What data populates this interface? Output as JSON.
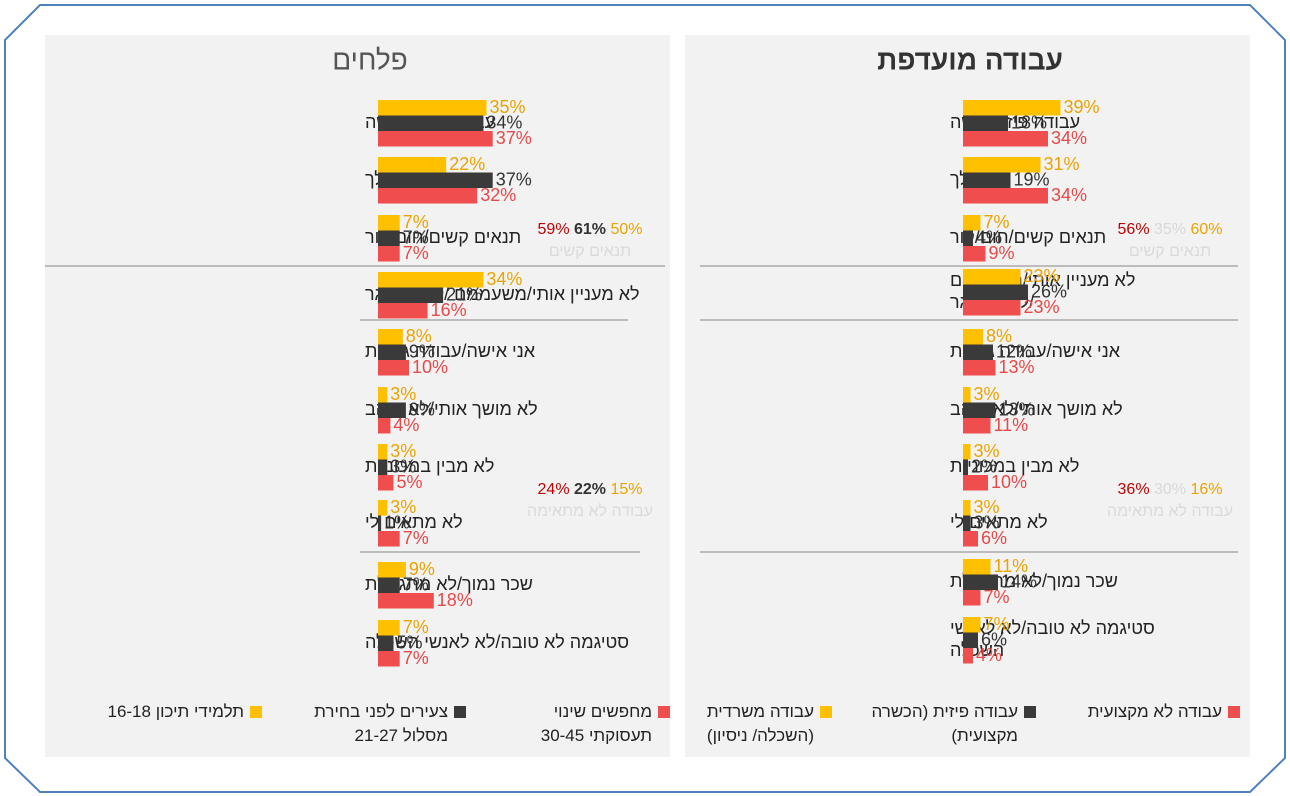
{
  "chart_data": [
    {
      "type": "bar",
      "orientation": "horizontal",
      "title": "פלחים",
      "categories": [
        "עבודה פיזית קשה",
        "מלכלך",
        "תנאים קשים/חום/קור",
        "לא מעניין אותי/משעממם /לא מאתגר",
        "אני אישה/עבודה גברית",
        "לא מושך אותי/לא אוהב",
        "לא מבין במכוניות",
        "לא מתאים לי",
        "שכר נמוך/לא מתגמלת",
        "סטיגמה לא טובה/לא לאנשי השכלה"
      ],
      "series": [
        {
          "name": "תלמידי תיכון 16-18",
          "color": "#FFC000",
          "label_color": "#EBA300",
          "values": [
            35,
            22,
            7,
            34,
            8,
            3,
            3,
            3,
            9,
            7
          ],
          "value_labels": [
            "35%",
            "22%",
            "7%",
            "34%",
            "8%",
            "3%",
            "3%",
            "3%",
            "9%",
            "7%"
          ]
        },
        {
          "name": "צעירים לפני בחירת מסלול 21-27",
          "color": "#3A3A3A",
          "label_color": "#333333",
          "values": [
            34,
            37,
            7,
            21,
            9,
            9,
            3,
            1,
            7,
            5
          ],
          "value_labels": [
            "34%",
            "37%",
            "7%",
            "21%",
            "9%",
            "9%",
            "3%",
            "1%",
            "7%",
            "5%"
          ]
        },
        {
          "name": "מחפשים שינוי תעסוקתי 30-45",
          "color": "#F04E4E",
          "label_color": "#E84848",
          "values": [
            37,
            32,
            7,
            16,
            10,
            4,
            5,
            7,
            18,
            7
          ],
          "value_labels": [
            "37%",
            "32%",
            "7%",
            "16%",
            "10%",
            "4%",
            "5%",
            "7%",
            "18%",
            "7%"
          ]
        }
      ],
      "annotations": [
        {
          "label": "תנאים קשים",
          "items": [
            {
              "value": 59,
              "label": "59%",
              "color": "#C00000"
            },
            {
              "value": 61,
              "label": "61%",
              "color": "#333333"
            },
            {
              "value": 50,
              "label": "50%",
              "color": "#EBA300"
            }
          ]
        },
        {
          "label": "עבודה לא מתאימה",
          "items": [
            {
              "value": 24,
              "label": "24%",
              "color": "#C00000"
            },
            {
              "value": 22,
              "label": "22%",
              "color": "#333333"
            },
            {
              "value": 15,
              "label": "15%",
              "color": "#EBA300"
            }
          ]
        }
      ]
    },
    {
      "type": "bar",
      "orientation": "horizontal",
      "title": "עבודה מועדפת",
      "categories": [
        "עבודה פיזית קשה",
        "מלכלך",
        "תנאים קשים/חום/קור",
        "לא מעניין אותי/משעממם /לא מאתגר",
        "אני אישה/עבודה גברית",
        "לא מושך אותי/לא אוהב",
        "לא מבין במכוניות",
        "לא מתאים לי",
        "שכר נמוך/לא מתגמלת",
        "סטיגמה לא טובה/לא לאנשי השכלה"
      ],
      "series": [
        {
          "name": "עבודה משרדית (השכלה/ ניסיון)",
          "color": "#FFC000",
          "label_color": "#EBA300",
          "values": [
            39,
            31,
            7,
            23,
            8,
            3,
            3,
            3,
            11,
            7
          ],
          "value_labels": [
            "39%",
            "31%",
            "7%",
            "23%",
            "8%",
            "3%",
            "3%",
            "3%",
            "11%",
            "7%"
          ]
        },
        {
          "name": "עבודה פיזית (הכשרה מקצועית)",
          "color": "#3A3A3A",
          "label_color": "#333333",
          "values": [
            18,
            19,
            4,
            26,
            12,
            13,
            2,
            3,
            14,
            6
          ],
          "value_labels": [
            "18%",
            "19%",
            "4%",
            "26%",
            "12%",
            "13%",
            "2%",
            "3%",
            "14%",
            "6%"
          ]
        },
        {
          "name": "עבודה לא מקצועית",
          "color": "#F04E4E",
          "label_color": "#E84848",
          "values": [
            34,
            34,
            9,
            23,
            13,
            11,
            10,
            6,
            7,
            4
          ],
          "value_labels": [
            "34%",
            "34%",
            "9%",
            "23%",
            "13%",
            "11%",
            "10%",
            "6%",
            "7%",
            "4%"
          ]
        }
      ],
      "annotations": [
        {
          "label": "תנאים קשים",
          "items": [
            {
              "value": 56,
              "label": "56%",
              "color": "#C00000"
            },
            {
              "value": 35,
              "label": "35%",
              "color": "#D8D8D8"
            },
            {
              "value": 60,
              "label": "60%",
              "color": "#EBA300"
            }
          ]
        },
        {
          "label": "עבודה לא מתאימה",
          "items": [
            {
              "value": 36,
              "label": "36%",
              "color": "#C00000"
            },
            {
              "value": 30,
              "label": "30%",
              "color": "#D8D8D8"
            },
            {
              "value": 16,
              "label": "16%",
              "color": "#EBA300"
            }
          ]
        }
      ]
    }
  ]
}
